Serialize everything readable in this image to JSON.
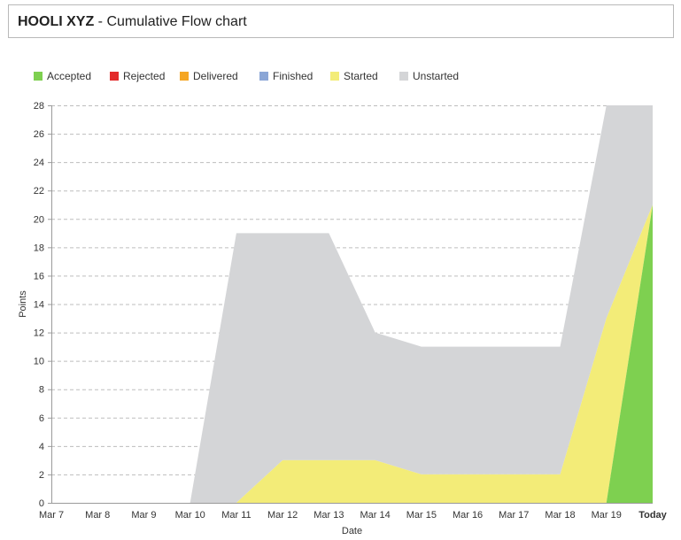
{
  "header": {
    "project": "HOOLI XYZ",
    "separator": " - ",
    "title": "Cumulative Flow chart"
  },
  "chart_data": {
    "type": "area",
    "stacked": true,
    "categories": [
      "Mar 7",
      "Mar 8",
      "Mar 9",
      "Mar 10",
      "Mar 11",
      "Mar 12",
      "Mar 13",
      "Mar 14",
      "Mar 15",
      "Mar 16",
      "Mar 17",
      "Mar 18",
      "Mar 19",
      "Today"
    ],
    "bold_category": "Today",
    "series": [
      {
        "name": "Accepted",
        "color": "#7ed050",
        "values": [
          0,
          0,
          0,
          0,
          0,
          0,
          0,
          0,
          0,
          0,
          0,
          0,
          0,
          21
        ]
      },
      {
        "name": "Rejected",
        "color": "#e32a2a",
        "values": [
          0,
          0,
          0,
          0,
          0,
          0,
          0,
          0,
          0,
          0,
          0,
          0,
          0,
          0
        ]
      },
      {
        "name": "Delivered",
        "color": "#f5a623",
        "values": [
          0,
          0,
          0,
          0,
          0,
          0,
          0,
          0,
          0,
          0,
          0,
          0,
          0,
          0
        ]
      },
      {
        "name": "Finished",
        "color": "#8ba6d6",
        "values": [
          0,
          0,
          0,
          0,
          0,
          0,
          0,
          0,
          0,
          0,
          0,
          0,
          0,
          0
        ]
      },
      {
        "name": "Started",
        "color": "#f3ec78",
        "values": [
          0,
          0,
          0,
          0,
          0,
          3,
          3,
          3,
          2,
          2,
          2,
          2,
          13,
          0
        ]
      },
      {
        "name": "Unstarted",
        "color": "#d4d5d7",
        "values": [
          0,
          0,
          0,
          0,
          19,
          16,
          16,
          9,
          9,
          9,
          9,
          9,
          15,
          7
        ]
      }
    ],
    "xlabel": "Date",
    "ylabel": "Points",
    "ylim": [
      0,
      28
    ],
    "yticks": [
      0,
      2,
      4,
      6,
      8,
      10,
      12,
      14,
      16,
      18,
      20,
      22,
      24,
      26,
      28
    ],
    "grid": true,
    "legend_position": "top-left"
  }
}
